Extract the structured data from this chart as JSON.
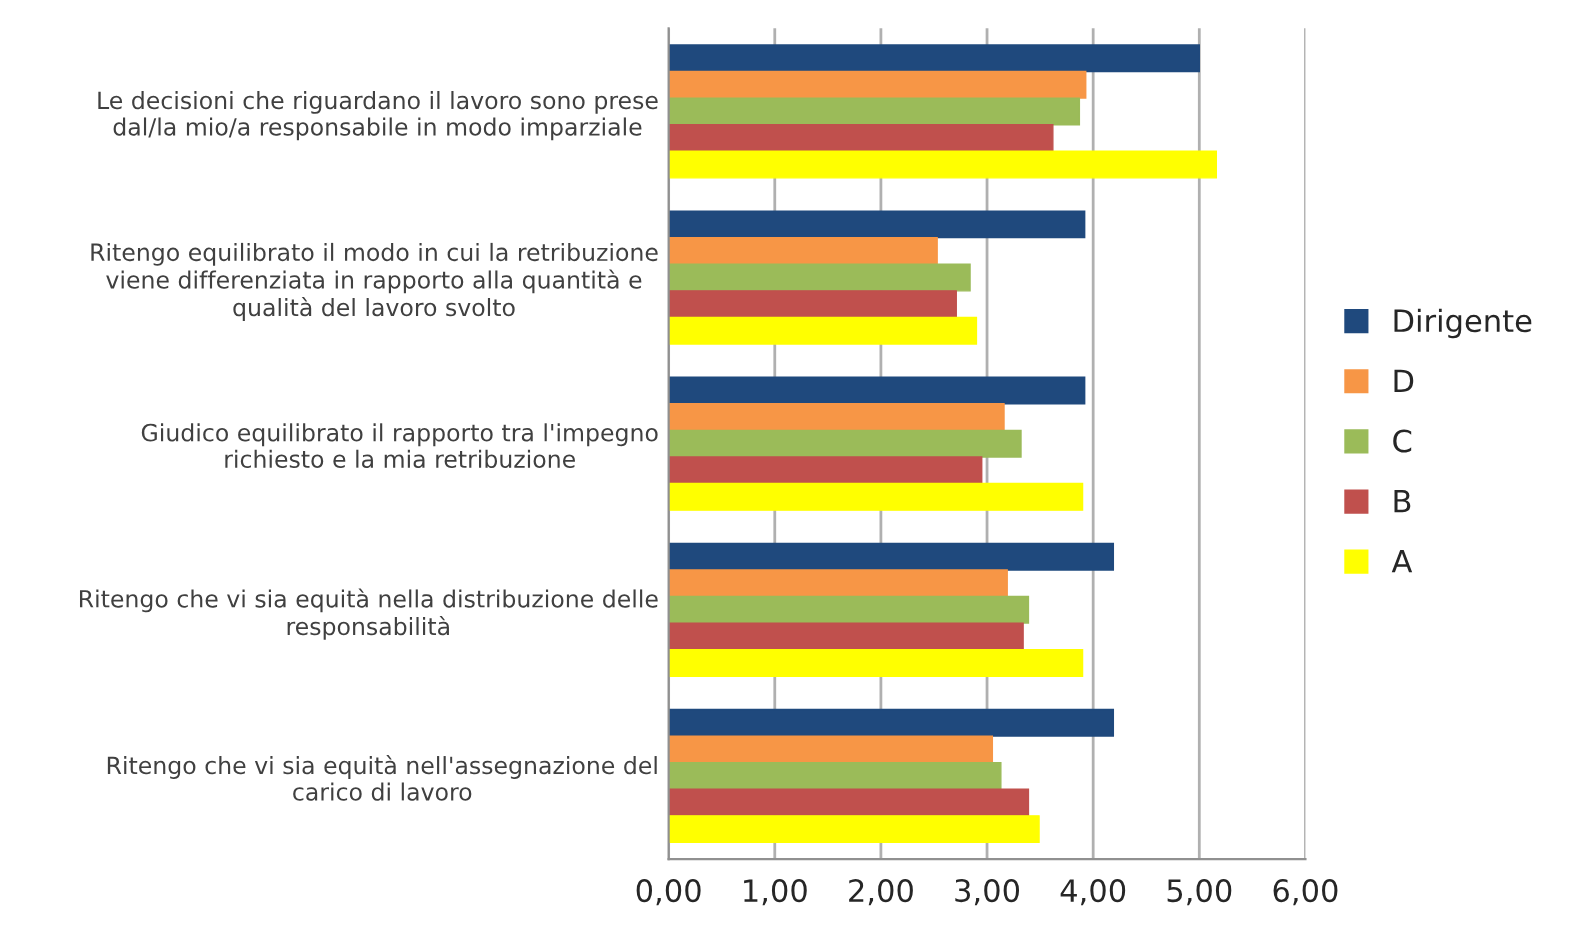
{
  "chart_data": {
    "type": "bar",
    "orientation": "horizontal",
    "categories": [
      "Le decisioni che riguardano il lavoro sono prese\ndal/la mio/a responsabile in modo imparziale",
      "Ritengo equilibrato il modo in cui la retribuzione\nviene differenziata in rapporto alla quantità e\nqualità del lavoro svolto",
      "Giudico equilibrato il rapporto tra l'impegno\nrichiesto e la mia retribuzione",
      "Ritengo che vi sia equità nella distribuzione delle\nresponsabilità",
      "Ritengo che vi sia equità nell'assegnazione del\ncarico di lavoro"
    ],
    "series": [
      {
        "name": "Dirigente",
        "color": "#1f497d",
        "values": [
          5.0,
          3.92,
          3.92,
          4.19,
          4.19
        ]
      },
      {
        "name": "D",
        "color": "#f79646",
        "values": [
          3.93,
          2.53,
          3.16,
          3.19,
          3.05
        ]
      },
      {
        "name": "C",
        "color": "#9bbb59",
        "values": [
          3.87,
          2.84,
          3.32,
          3.39,
          3.13
        ]
      },
      {
        "name": "B",
        "color": "#c0504d",
        "values": [
          3.62,
          2.71,
          2.95,
          3.34,
          3.39
        ]
      },
      {
        "name": "A",
        "color": "#ffff00",
        "values": [
          5.16,
          2.9,
          3.9,
          3.9,
          3.49
        ]
      }
    ],
    "xlim": [
      0,
      6
    ],
    "xticks": [
      {
        "value": 0,
        "label": "0,00"
      },
      {
        "value": 1,
        "label": "1,00"
      },
      {
        "value": 2,
        "label": "2,00"
      },
      {
        "value": 3,
        "label": "3,00"
      },
      {
        "value": 4,
        "label": "4,00"
      },
      {
        "value": 5,
        "label": "5,00"
      },
      {
        "value": 6,
        "label": "6,00"
      }
    ],
    "grid": "x",
    "legend": "right"
  }
}
